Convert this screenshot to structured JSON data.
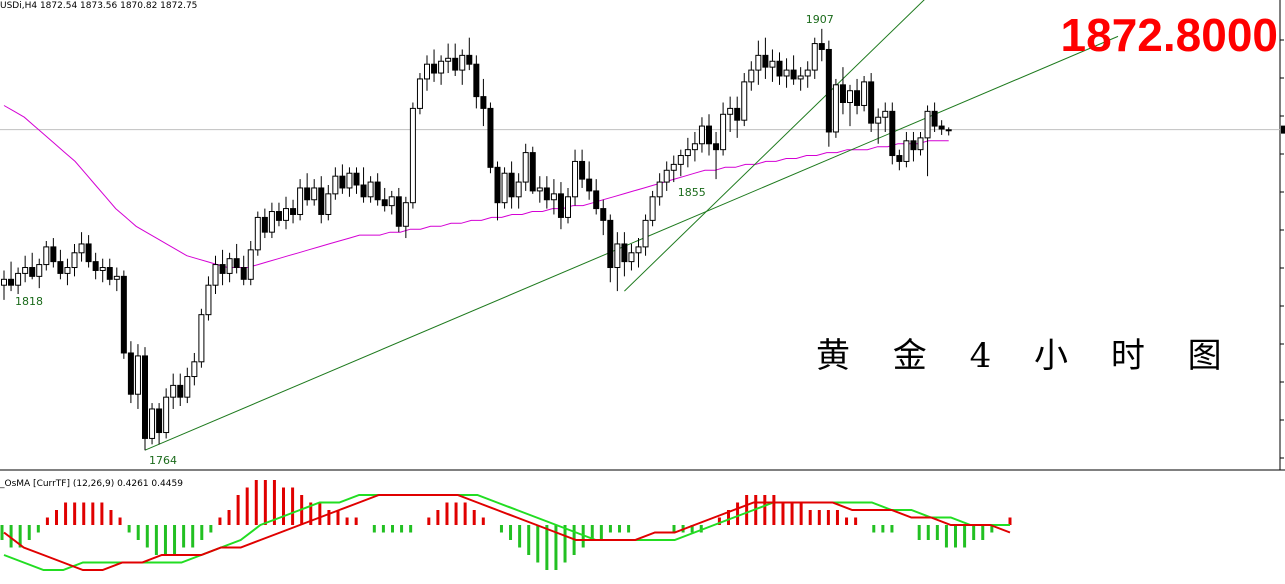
{
  "header": {
    "symbol_text": "USDi,H4  1872.54 1873.56 1870.82 1872.75"
  },
  "current_price": "1872.8000",
  "title": "黄 金 4 小 时  图",
  "osma_header": "_OsMA [CurrTF] (12,26,9) 0.4261 0.4459",
  "colors": {
    "background": "#ffffff",
    "candle_bull_body": "#ffffff",
    "candle_bear_body": "#000000",
    "moving_average": "#d400d4",
    "trendlines": "#1e7a1e",
    "price_line": "#c0c0c0",
    "price_text": "#ff0000",
    "osma_positive": "#e00000",
    "osma_negative": "#22c022",
    "osma_line_red": "#e00000",
    "osma_line_green": "#22dd22"
  },
  "chart_data": {
    "type": "candlestick",
    "timeframe": "H4",
    "last_quote": {
      "open": 1872.54,
      "high": 1873.56,
      "low": 1870.82,
      "close": 1872.75
    },
    "price_marker": 1872.8,
    "annotations": [
      {
        "label": "1907",
        "kind": "swing-high"
      },
      {
        "label": "1764",
        "kind": "swing-low"
      },
      {
        "label": "1818",
        "kind": "swing-low"
      },
      {
        "label": "1855",
        "kind": "swing-low"
      }
    ],
    "candles": [
      [
        1820,
        1825,
        1815,
        1822
      ],
      [
        1822,
        1828,
        1818,
        1820
      ],
      [
        1820,
        1826,
        1817,
        1824
      ],
      [
        1824,
        1830,
        1821,
        1826
      ],
      [
        1826,
        1831,
        1822,
        1823
      ],
      [
        1823,
        1829,
        1819,
        1827
      ],
      [
        1827,
        1835,
        1825,
        1833
      ],
      [
        1833,
        1836,
        1826,
        1828
      ],
      [
        1828,
        1832,
        1822,
        1824
      ],
      [
        1824,
        1829,
        1820,
        1826
      ],
      [
        1826,
        1834,
        1823,
        1831
      ],
      [
        1831,
        1838,
        1828,
        1834
      ],
      [
        1834,
        1837,
        1826,
        1828
      ],
      [
        1828,
        1831,
        1822,
        1825
      ],
      [
        1825,
        1829,
        1821,
        1826
      ],
      [
        1826,
        1829,
        1820,
        1822
      ],
      [
        1822,
        1826,
        1818,
        1823
      ],
      [
        1823,
        1825,
        1795,
        1797
      ],
      [
        1797,
        1801,
        1780,
        1783
      ],
      [
        1783,
        1800,
        1778,
        1796
      ],
      [
        1796,
        1799,
        1764,
        1768
      ],
      [
        1768,
        1780,
        1766,
        1778
      ],
      [
        1778,
        1780,
        1766,
        1770
      ],
      [
        1770,
        1785,
        1768,
        1782
      ],
      [
        1782,
        1790,
        1778,
        1786
      ],
      [
        1786,
        1790,
        1779,
        1782
      ],
      [
        1782,
        1792,
        1780,
        1789
      ],
      [
        1789,
        1797,
        1786,
        1794
      ],
      [
        1794,
        1812,
        1792,
        1810
      ],
      [
        1810,
        1823,
        1808,
        1820
      ],
      [
        1820,
        1830,
        1817,
        1827
      ],
      [
        1827,
        1832,
        1820,
        1824
      ],
      [
        1824,
        1831,
        1821,
        1829
      ],
      [
        1829,
        1834,
        1824,
        1826
      ],
      [
        1826,
        1830,
        1820,
        1822
      ],
      [
        1822,
        1835,
        1820,
        1832
      ],
      [
        1832,
        1845,
        1830,
        1843
      ],
      [
        1843,
        1846,
        1836,
        1838
      ],
      [
        1838,
        1848,
        1836,
        1845
      ],
      [
        1845,
        1848,
        1840,
        1842
      ],
      [
        1842,
        1850,
        1839,
        1846
      ],
      [
        1846,
        1849,
        1841,
        1844
      ],
      [
        1844,
        1856,
        1842,
        1853
      ],
      [
        1853,
        1858,
        1847,
        1849
      ],
      [
        1849,
        1856,
        1847,
        1853
      ],
      [
        1853,
        1857,
        1841,
        1844
      ],
      [
        1844,
        1854,
        1842,
        1851
      ],
      [
        1851,
        1860,
        1849,
        1857
      ],
      [
        1857,
        1861,
        1851,
        1853
      ],
      [
        1853,
        1860,
        1850,
        1858
      ],
      [
        1858,
        1860,
        1851,
        1854
      ],
      [
        1854,
        1860,
        1848,
        1850
      ],
      [
        1850,
        1857,
        1848,
        1855
      ],
      [
        1855,
        1858,
        1847,
        1849
      ],
      [
        1849,
        1853,
        1845,
        1847
      ],
      [
        1847,
        1852,
        1844,
        1850
      ],
      [
        1850,
        1853,
        1838,
        1840
      ],
      [
        1840,
        1850,
        1836,
        1848
      ],
      [
        1848,
        1882,
        1846,
        1880
      ],
      [
        1880,
        1892,
        1878,
        1890
      ],
      [
        1890,
        1898,
        1886,
        1895
      ],
      [
        1895,
        1900,
        1889,
        1892
      ],
      [
        1892,
        1898,
        1888,
        1896
      ],
      [
        1896,
        1902,
        1892,
        1897
      ],
      [
        1897,
        1902,
        1891,
        1893
      ],
      [
        1893,
        1900,
        1888,
        1898
      ],
      [
        1898,
        1904,
        1893,
        1895
      ],
      [
        1895,
        1898,
        1880,
        1884
      ],
      [
        1884,
        1890,
        1874,
        1880
      ],
      [
        1880,
        1882,
        1858,
        1860
      ],
      [
        1860,
        1862,
        1842,
        1848
      ],
      [
        1848,
        1860,
        1846,
        1858
      ],
      [
        1858,
        1862,
        1846,
        1850
      ],
      [
        1850,
        1858,
        1846,
        1855
      ],
      [
        1855,
        1868,
        1852,
        1865
      ],
      [
        1865,
        1867,
        1851,
        1852
      ],
      [
        1852,
        1857,
        1848,
        1853
      ],
      [
        1853,
        1857,
        1846,
        1849
      ],
      [
        1849,
        1856,
        1844,
        1851
      ],
      [
        1851,
        1855,
        1839,
        1843
      ],
      [
        1843,
        1853,
        1841,
        1850
      ],
      [
        1850,
        1866,
        1847,
        1862
      ],
      [
        1862,
        1866,
        1853,
        1856
      ],
      [
        1856,
        1862,
        1849,
        1852
      ],
      [
        1852,
        1856,
        1844,
        1846
      ],
      [
        1846,
        1849,
        1837,
        1842
      ],
      [
        1842,
        1844,
        1821,
        1826
      ],
      [
        1826,
        1838,
        1818,
        1834
      ],
      [
        1834,
        1838,
        1823,
        1828
      ],
      [
        1828,
        1834,
        1825,
        1831
      ],
      [
        1831,
        1836,
        1826,
        1833
      ],
      [
        1833,
        1844,
        1830,
        1842
      ],
      [
        1842,
        1852,
        1840,
        1850
      ],
      [
        1850,
        1858,
        1847,
        1855
      ],
      [
        1855,
        1862,
        1852,
        1859
      ],
      [
        1859,
        1864,
        1855,
        1861
      ],
      [
        1861,
        1866,
        1857,
        1864
      ],
      [
        1864,
        1870,
        1860,
        1866
      ],
      [
        1866,
        1872,
        1862,
        1868
      ],
      [
        1868,
        1877,
        1865,
        1874
      ],
      [
        1874,
        1878,
        1864,
        1868
      ],
      [
        1868,
        1872,
        1856,
        1866
      ],
      [
        1866,
        1882,
        1864,
        1878
      ],
      [
        1878,
        1884,
        1872,
        1880
      ],
      [
        1880,
        1884,
        1870,
        1876
      ],
      [
        1876,
        1892,
        1874,
        1889
      ],
      [
        1889,
        1896,
        1886,
        1893
      ],
      [
        1893,
        1903,
        1888,
        1898
      ],
      [
        1898,
        1904,
        1890,
        1894
      ],
      [
        1894,
        1900,
        1889,
        1896
      ],
      [
        1896,
        1899,
        1888,
        1891
      ],
      [
        1891,
        1897,
        1887,
        1893
      ],
      [
        1893,
        1898,
        1888,
        1890
      ],
      [
        1890,
        1894,
        1886,
        1891
      ],
      [
        1891,
        1896,
        1887,
        1893
      ],
      [
        1893,
        1904,
        1890,
        1902
      ],
      [
        1902,
        1907,
        1896,
        1900
      ],
      [
        1900,
        1903,
        1867,
        1872
      ],
      [
        1872,
        1890,
        1870,
        1888
      ],
      [
        1888,
        1894,
        1878,
        1882
      ],
      [
        1882,
        1888,
        1874,
        1886
      ],
      [
        1886,
        1890,
        1878,
        1881
      ],
      [
        1881,
        1891,
        1879,
        1889
      ],
      [
        1889,
        1892,
        1872,
        1875
      ],
      [
        1875,
        1880,
        1868,
        1877
      ],
      [
        1877,
        1882,
        1872,
        1879
      ],
      [
        1879,
        1882,
        1861,
        1864
      ],
      [
        1864,
        1866,
        1859,
        1862
      ],
      [
        1862,
        1872,
        1860,
        1869
      ],
      [
        1869,
        1872,
        1862,
        1866
      ],
      [
        1866,
        1872,
        1864,
        1870
      ],
      [
        1870,
        1881,
        1857,
        1879
      ],
      [
        1879,
        1882,
        1872,
        1874
      ],
      [
        1874,
        1876,
        1871,
        1873
      ],
      [
        1872.54,
        1873.56,
        1870.82,
        1872.75
      ]
    ],
    "moving_average": {
      "name": "MA",
      "values": [
        1881,
        1879,
        1877,
        1874,
        1871,
        1868,
        1865,
        1862,
        1858,
        1854,
        1850,
        1846,
        1843,
        1840,
        1838,
        1836,
        1834,
        1832,
        1830,
        1829,
        1828,
        1827,
        1826,
        1826,
        1826,
        1827,
        1828,
        1829,
        1830,
        1831,
        1832,
        1833,
        1834,
        1835,
        1836,
        1837,
        1837,
        1837,
        1838,
        1838,
        1839,
        1839,
        1840,
        1840,
        1841,
        1841,
        1842,
        1842,
        1843,
        1843,
        1844,
        1844,
        1845,
        1845,
        1846,
        1846,
        1847,
        1847,
        1848,
        1849,
        1850,
        1851,
        1852,
        1853,
        1854,
        1855,
        1856,
        1857,
        1858,
        1859,
        1859,
        1860,
        1860,
        1861,
        1861,
        1862,
        1862,
        1863,
        1863,
        1864,
        1864,
        1865,
        1865,
        1866,
        1866,
        1866,
        1867,
        1867,
        1868,
        1868,
        1868,
        1869,
        1869,
        1869
      ]
    },
    "trendlines": [
      {
        "from": {
          "bar": 20,
          "price": 1764
        },
        "to": {
          "bar": 134,
          "price": 1880
        }
      },
      {
        "from": {
          "bar": 88,
          "price": 1818
        },
        "to": {
          "bar": 125,
          "price": 1904
        }
      }
    ],
    "osma": {
      "name": "OsMA [CurrTF] (12,26,9)",
      "main": 0.4261,
      "signal": 0.4459,
      "histogram": [
        -2,
        -3,
        -3,
        -2,
        -1,
        1,
        2,
        3,
        3,
        3,
        3,
        3,
        2,
        1,
        -1,
        -2,
        -3,
        -4,
        -4,
        -4,
        -3,
        -3,
        -2,
        -1,
        1,
        2,
        4,
        5,
        6,
        6,
        6,
        5,
        5,
        4,
        3,
        3,
        2,
        2,
        1,
        1,
        0,
        -1,
        -1,
        -1,
        -1,
        -1,
        0,
        1,
        2,
        3,
        3,
        3,
        2,
        1,
        0,
        -1,
        -2,
        -3,
        -4,
        -5,
        -6,
        -6,
        -5,
        -4,
        -3,
        -2,
        -2,
        -1,
        -1,
        -1,
        0,
        0,
        0,
        0,
        -1,
        -1,
        -1,
        -1,
        0,
        1,
        2,
        3,
        4,
        4,
        4,
        4,
        3,
        3,
        3,
        2,
        2,
        2,
        2,
        1,
        1,
        0,
        -1,
        -1,
        -1,
        0,
        0,
        -2,
        -2,
        -2,
        -3,
        -3,
        -3,
        -2,
        -2,
        -1,
        0,
        1
      ],
      "line_red": [
        -1,
        -3,
        -4,
        -5,
        -6,
        -6,
        -5,
        -5,
        -4,
        -4,
        -4,
        -3,
        -3,
        -2,
        -1,
        0,
        1,
        2,
        3,
        4,
        4,
        4,
        4,
        4,
        3,
        2,
        1,
        0,
        -1,
        -2,
        -2,
        -2,
        -2,
        -1,
        -1,
        0,
        1,
        2,
        3,
        3,
        3,
        3,
        3,
        2,
        2,
        2,
        1,
        1,
        0,
        0,
        0,
        -1
      ],
      "line_green": [
        -4,
        -5,
        -6,
        -6,
        -5,
        -5,
        -5,
        -5,
        -5,
        -5,
        -4,
        -3,
        -2,
        0,
        1,
        2,
        3,
        3,
        4,
        4,
        4,
        4,
        4,
        4,
        4,
        3,
        2,
        1,
        0,
        -1,
        -2,
        -2,
        -2,
        -2,
        -2,
        -1,
        0,
        1,
        2,
        3,
        3,
        3,
        3,
        3,
        3,
        2,
        2,
        1,
        1,
        0,
        0,
        0
      ]
    }
  }
}
